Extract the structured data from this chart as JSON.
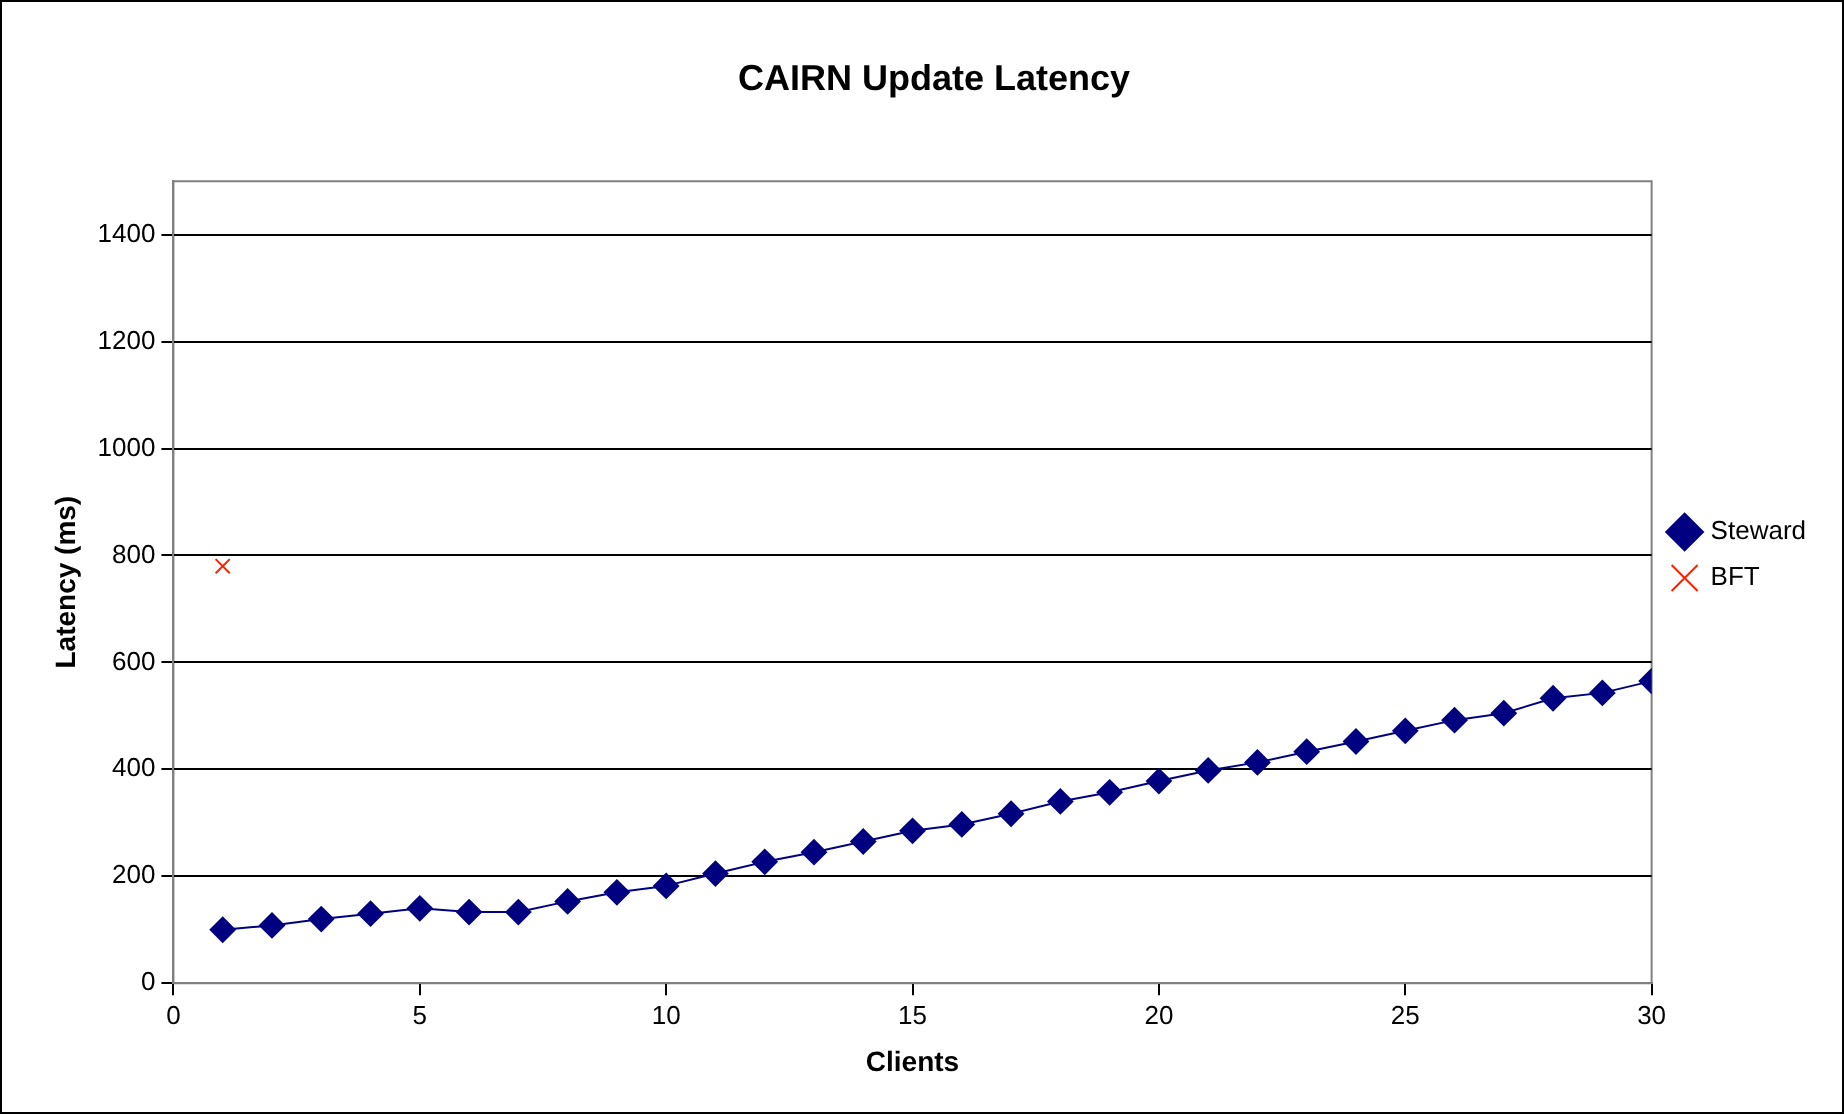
{
  "chart_data": {
    "type": "line",
    "title": "CAIRN Update Latency",
    "xlabel": "Clients",
    "ylabel": "Latency (ms)",
    "x": [
      1,
      2,
      3,
      4,
      5,
      6,
      7,
      8,
      9,
      10,
      11,
      12,
      13,
      14,
      15,
      16,
      17,
      18,
      19,
      20,
      21,
      22,
      23,
      24,
      25,
      26,
      27,
      28,
      29,
      30
    ],
    "series": [
      {
        "name": "Steward",
        "color": "#000080",
        "marker": "diamond",
        "values": [
          100,
          108,
          120,
          130,
          140,
          133,
          133,
          153,
          170,
          182,
          205,
          227,
          245,
          265,
          285,
          297,
          317,
          340,
          357,
          378,
          398,
          413,
          433,
          452,
          472,
          492,
          505,
          533,
          543,
          565
        ]
      },
      {
        "name": "BFT",
        "color": "#ff2000",
        "marker": "cross",
        "values": [
          780,
          null,
          null,
          null,
          null,
          null,
          null,
          null,
          null,
          null,
          null,
          null,
          null,
          null,
          null,
          null,
          null,
          null,
          null,
          null,
          null,
          null,
          null,
          null,
          null,
          null,
          null,
          null,
          null,
          null
        ]
      }
    ],
    "xlim": [
      0,
      30
    ],
    "xticks": [
      0,
      5,
      10,
      15,
      20,
      25,
      30
    ],
    "ylim": [
      0,
      1500
    ],
    "yticks": [
      0,
      200,
      400,
      600,
      800,
      1000,
      1200,
      1400
    ],
    "grid": "y",
    "legend": "right",
    "line_style": "solid"
  }
}
